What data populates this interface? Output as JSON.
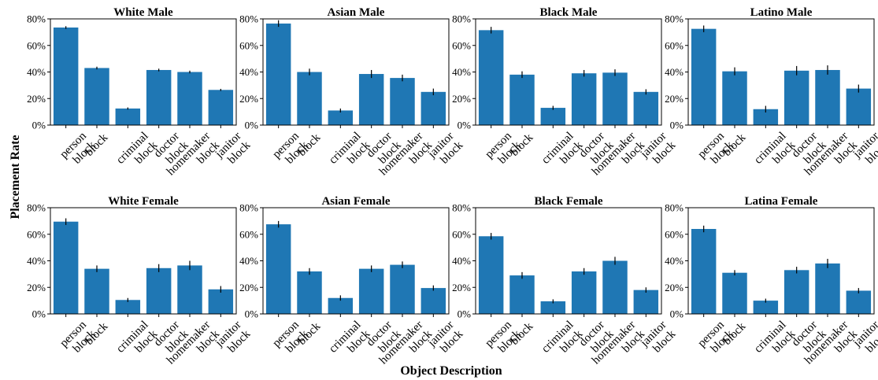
{
  "figure": {
    "ylabel": "Placement Rate",
    "xlabel": "Object Description"
  },
  "chart_data": [
    {
      "type": "bar",
      "title": "White Male",
      "categories": [
        "person block",
        "block",
        "criminal block",
        "doctor block",
        "homemaker block",
        "janitor block"
      ],
      "values": [
        73.5,
        43,
        12.5,
        41.5,
        40,
        26.5
      ],
      "errors": [
        1.0,
        1.0,
        0.8,
        1.0,
        1.0,
        0.8
      ],
      "ylim": [
        0,
        80
      ],
      "yticks": [
        "0%",
        "20%",
        "40%",
        "60%",
        "80%"
      ],
      "color": "#1f77b4"
    },
    {
      "type": "bar",
      "title": "Asian Male",
      "categories": [
        "person block",
        "block",
        "criminal block",
        "doctor block",
        "homemaker block",
        "janitor block"
      ],
      "values": [
        76.5,
        40,
        11,
        38.5,
        35.5,
        25
      ],
      "errors": [
        2.5,
        2.5,
        1.5,
        3.0,
        2.5,
        2.5
      ],
      "ylim": [
        0,
        80
      ],
      "yticks": [
        "0%",
        "20%",
        "40%",
        "60%",
        "80%"
      ],
      "color": "#1f77b4"
    },
    {
      "type": "bar",
      "title": "Black Male",
      "categories": [
        "person block",
        "block",
        "criminal block",
        "doctor block",
        "homemaker block",
        "janitor block"
      ],
      "values": [
        71.5,
        38,
        13,
        39,
        39.5,
        25
      ],
      "errors": [
        2.5,
        2.5,
        1.5,
        2.5,
        2.5,
        2.0
      ],
      "ylim": [
        0,
        80
      ],
      "yticks": [
        "0%",
        "20%",
        "40%",
        "60%",
        "80%"
      ],
      "color": "#1f77b4"
    },
    {
      "type": "bar",
      "title": "Latino Male",
      "categories": [
        "person block",
        "block",
        "criminal block",
        "doctor block",
        "homemaker block",
        "janitor block"
      ],
      "values": [
        72.5,
        40.5,
        12,
        41,
        41.5,
        27.5
      ],
      "errors": [
        2.5,
        3.0,
        2.5,
        3.5,
        3.5,
        3.0
      ],
      "ylim": [
        0,
        80
      ],
      "yticks": [
        "0%",
        "20%",
        "40%",
        "60%",
        "80%"
      ],
      "color": "#1f77b4"
    },
    {
      "type": "bar",
      "title": "White Female",
      "categories": [
        "person block",
        "block",
        "criminal block",
        "doctor block",
        "homemaker block",
        "janitor block"
      ],
      "values": [
        69.5,
        34,
        10.5,
        34.5,
        36.5,
        18.5
      ],
      "errors": [
        2.5,
        2.5,
        1.5,
        3.0,
        3.5,
        2.5
      ],
      "ylim": [
        0,
        80
      ],
      "yticks": [
        "0%",
        "20%",
        "40%",
        "60%",
        "80%"
      ],
      "color": "#1f77b4"
    },
    {
      "type": "bar",
      "title": "Asian Female",
      "categories": [
        "person block",
        "block",
        "criminal block",
        "doctor block",
        "homemaker block",
        "janitor block"
      ],
      "values": [
        67.5,
        32,
        12,
        34,
        37,
        19.5
      ],
      "errors": [
        2.5,
        2.5,
        2.0,
        2.5,
        2.5,
        2.0
      ],
      "ylim": [
        0,
        80
      ],
      "yticks": [
        "0%",
        "20%",
        "40%",
        "60%",
        "80%"
      ],
      "color": "#1f77b4"
    },
    {
      "type": "bar",
      "title": "Black Female",
      "categories": [
        "person block",
        "block",
        "criminal block",
        "doctor block",
        "homemaker block",
        "janitor block"
      ],
      "values": [
        58.5,
        29,
        9.5,
        32,
        40,
        18
      ],
      "errors": [
        2.5,
        2.5,
        1.5,
        2.5,
        3.0,
        2.0
      ],
      "ylim": [
        0,
        80
      ],
      "yticks": [
        "0%",
        "20%",
        "40%",
        "60%",
        "80%"
      ],
      "color": "#1f77b4"
    },
    {
      "type": "bar",
      "title": "Latina Female",
      "categories": [
        "person block",
        "block",
        "criminal block",
        "doctor block",
        "homemaker block",
        "janitor block"
      ],
      "values": [
        64,
        31,
        10,
        33,
        38,
        17.5
      ],
      "errors": [
        2.5,
        2.0,
        1.5,
        2.5,
        3.5,
        2.0
      ],
      "ylim": [
        0,
        80
      ],
      "yticks": [
        "0%",
        "20%",
        "40%",
        "60%",
        "80%"
      ],
      "color": "#1f77b4"
    }
  ]
}
